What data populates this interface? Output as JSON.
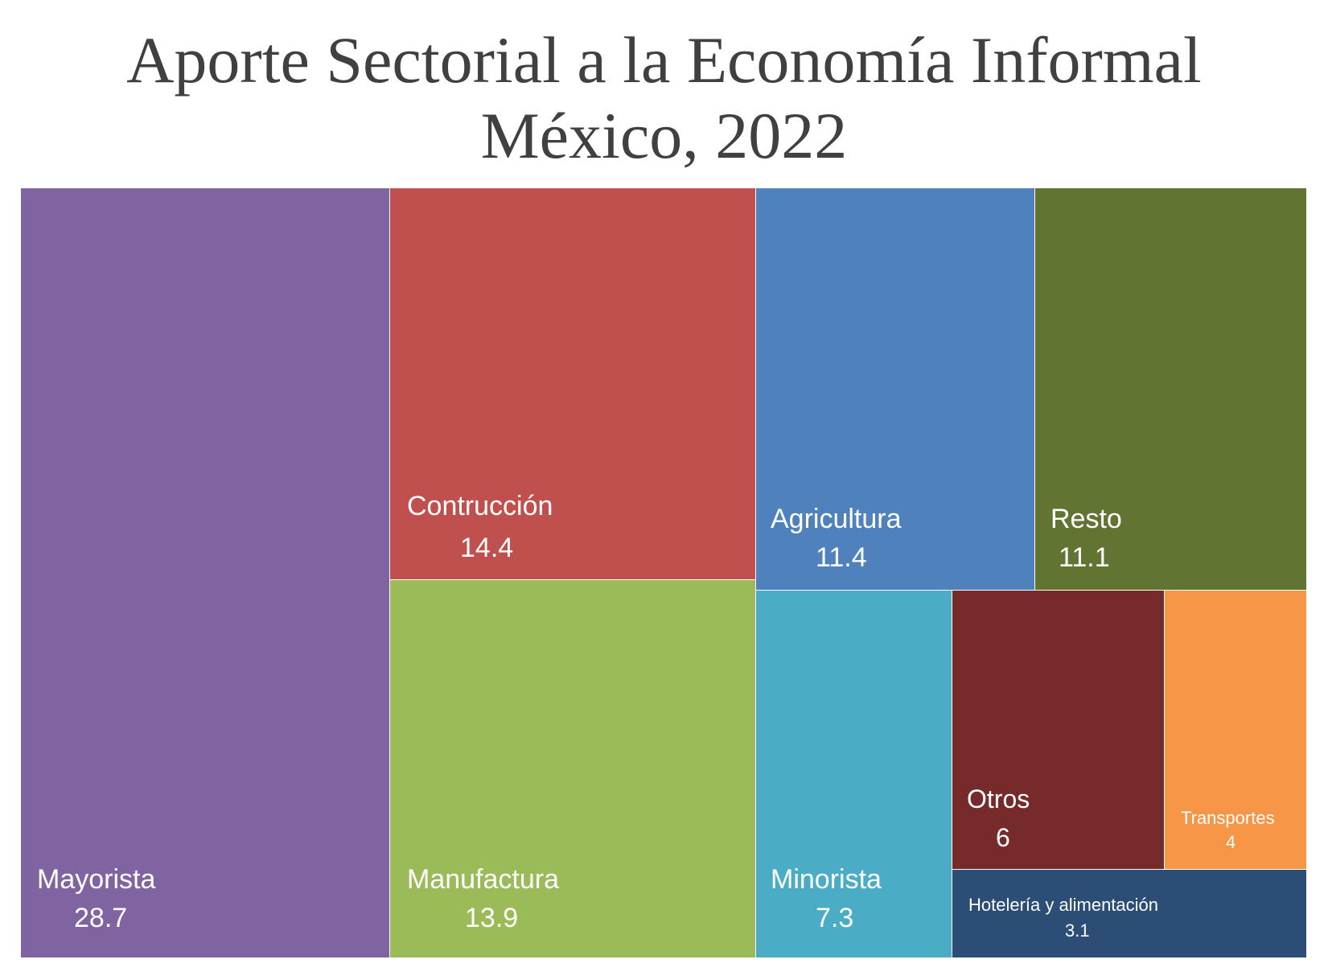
{
  "title_line1": "Aporte Sectorial a la Economía Informal",
  "title_line2": "México, 2022",
  "chart_data": {
    "type": "treemap",
    "title": "Aporte Sectorial a la Economía Informal",
    "subtitle": "México, 2022",
    "items": [
      {
        "label": "Mayorista",
        "value": 28.7,
        "color": "#8064A2"
      },
      {
        "label": "Contrucción",
        "value": 14.4,
        "color": "#C0504D"
      },
      {
        "label": "Manufactura",
        "value": 13.9,
        "color": "#9BBB59"
      },
      {
        "label": "Agricultura",
        "value": 11.4,
        "color": "#4F81BD"
      },
      {
        "label": "Resto",
        "value": 11.1,
        "color": "#627431"
      },
      {
        "label": "Minorista",
        "value": 7.3,
        "color": "#4BACC6"
      },
      {
        "label": "Otros",
        "value": 6,
        "color": "#772A2A"
      },
      {
        "label": "Transportes",
        "value": 4,
        "color": "#F79646"
      },
      {
        "label": "Hotelería y alimentación",
        "value": 3.1,
        "color": "#2C4D75"
      }
    ]
  }
}
